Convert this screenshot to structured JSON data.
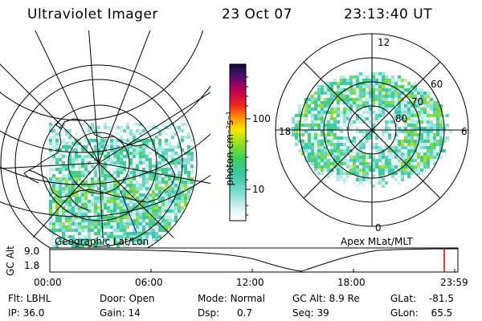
{
  "header": {
    "title": "Ultraviolet Imager",
    "date": "23 Oct 07",
    "time": "23:13:40 UT"
  },
  "colorbar": {
    "label": "photon cm⁻²s⁻¹",
    "ticks": [
      "100",
      "10"
    ]
  },
  "left_map": {
    "caption": "Geographic Lat/Lon"
  },
  "right_map": {
    "caption": "Apex MLat/MLT",
    "mlt_labels": {
      "top": "12",
      "left": "18",
      "right": "6",
      "bottom": "0"
    },
    "lat_labels": [
      "60",
      "70",
      "80"
    ]
  },
  "altitude_plot": {
    "ylabel": "GC Alt",
    "yticks": [
      "9.0",
      "1.8"
    ],
    "xticks": [
      "00:00",
      "06:00",
      "12:00",
      "18:00",
      "23:59"
    ]
  },
  "info": {
    "row1": [
      {
        "label": "Flt:",
        "value": "LBHL"
      },
      {
        "label": "Door:",
        "value": "Open"
      },
      {
        "label": "Mode:",
        "value": "Normal"
      },
      {
        "label": "GC Alt:",
        "value": "8.9 Re"
      },
      {
        "label": "GLat:",
        "value": "-81.5"
      }
    ],
    "row2": [
      {
        "label": "IP:",
        "value": "36.0"
      },
      {
        "label": "Gain:",
        "value": "14"
      },
      {
        "label": "Dsp:",
        "value": "0.7"
      },
      {
        "label": "Seq:",
        "value": "39"
      },
      {
        "label": "GLon:",
        "value": "65.5"
      }
    ]
  },
  "colors": {
    "marker": "#cc0000",
    "track": "#0000aa"
  }
}
